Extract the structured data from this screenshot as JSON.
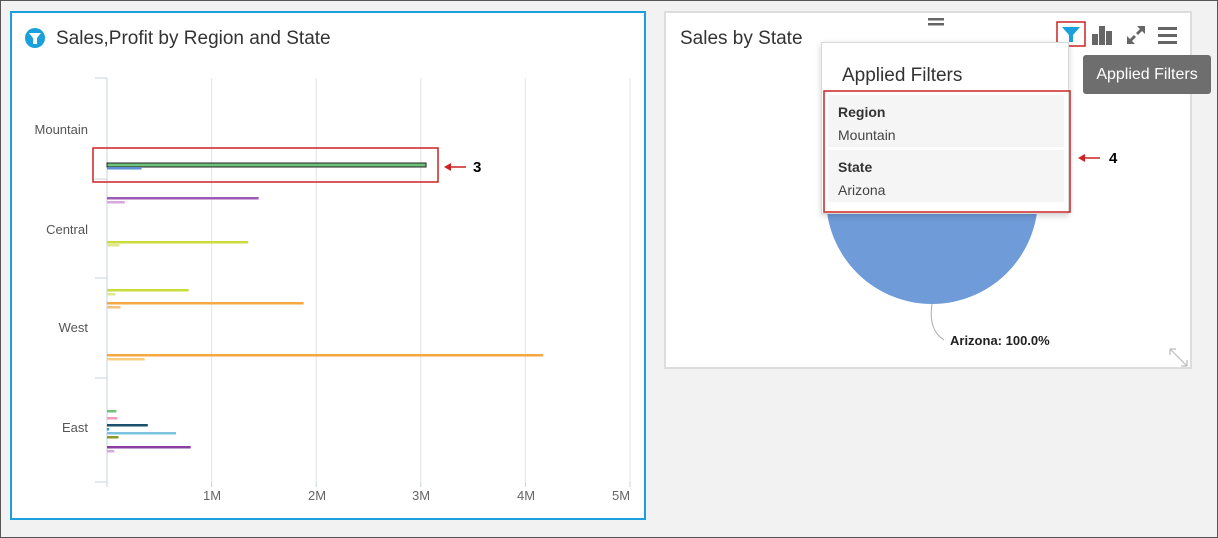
{
  "left_panel": {
    "title": "Sales,Profit by Region and State",
    "annotation_label": "3"
  },
  "right_panel": {
    "title": "Sales by State",
    "toolbar_icons": [
      "filter-icon",
      "bar-chart-icon",
      "expand-icon",
      "menu-icon"
    ],
    "annotation_label": "4",
    "pie_label": "Arizona: 100.0%"
  },
  "applied_filters": {
    "title": "Applied Filters",
    "filters": [
      {
        "name": "Region",
        "value": "Mountain"
      },
      {
        "name": "State",
        "value": "Arizona"
      }
    ]
  },
  "tooltip": "Applied Filters",
  "colors": {
    "accent": "#1aa0dc",
    "highlight_box": "#cc2222",
    "pie": "#6f9bd8"
  },
  "chart_data": [
    {
      "type": "bar",
      "orientation": "horizontal",
      "title": "Sales,Profit by Region and State",
      "categories": [
        "Mountain",
        "Central",
        "West",
        "East"
      ],
      "xlim": [
        0,
        5000000
      ],
      "x_ticks": [
        "1M",
        "2M",
        "3M",
        "4M",
        "5M"
      ],
      "grid": true,
      "bars": [
        {
          "category": "Mountain",
          "color": "#6fc27a",
          "value": 3050000,
          "highlight": true
        },
        {
          "category": "Mountain",
          "color": "#5b8fd0",
          "value": 330000
        },
        {
          "category": "Central",
          "color": "#9e5bb5",
          "value": 1450000
        },
        {
          "category": "Central",
          "color": "#d7a8e0",
          "value": 170000
        },
        {
          "category": "Central",
          "color": "#c9dc3c",
          "value": 1350000
        },
        {
          "category": "Central",
          "color": "#dfe98a",
          "value": 120000
        },
        {
          "category": "West",
          "color": "#c9dc3c",
          "value": 780000
        },
        {
          "category": "West",
          "color": "#dfe98a",
          "value": 80000
        },
        {
          "category": "West",
          "color": "#f5a742",
          "value": 1880000
        },
        {
          "category": "West",
          "color": "#f7c07a",
          "value": 130000
        },
        {
          "category": "West",
          "color": "#f5a742",
          "value": 4170000
        },
        {
          "category": "West",
          "color": "#f9cf7f",
          "value": 360000
        },
        {
          "category": "East",
          "color": "#6fc27a",
          "value": 90000
        },
        {
          "category": "East",
          "color": "#f29ac0",
          "value": 100000
        },
        {
          "category": "East",
          "color": "#1a4f6e",
          "value": 390000
        },
        {
          "category": "East",
          "color": "#1aa0dc",
          "value": 20000
        },
        {
          "category": "East",
          "color": "#7cc3e0",
          "value": 660000
        },
        {
          "category": "East",
          "color": "#8a9a2a",
          "value": 110000
        },
        {
          "category": "East",
          "color": "#8b3fa0",
          "value": 800000
        },
        {
          "category": "East",
          "color": "#d7a8e0",
          "value": 70000
        }
      ]
    },
    {
      "type": "pie",
      "title": "Sales by State",
      "slices": [
        {
          "label": "Arizona",
          "value": 100.0,
          "color": "#6f9bd8"
        }
      ]
    }
  ]
}
